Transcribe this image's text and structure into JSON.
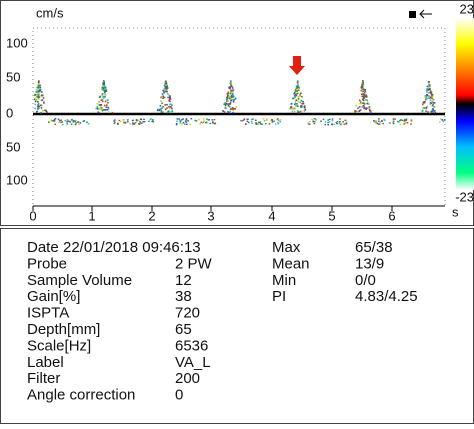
{
  "spectrum": {
    "velocity_unit": "cm/s",
    "y_labels": [
      "100",
      "50",
      "0",
      "50",
      "100"
    ],
    "x_labels": [
      "0",
      "1",
      "2",
      "3",
      "4",
      "5",
      "6"
    ],
    "time_unit": "s",
    "scale_top": "23",
    "scale_bottom": "-23"
  },
  "info": {
    "left": [
      [
        "Date",
        "22/01/2018 09:46:13"
      ],
      [
        "Probe",
        "2 PW"
      ],
      [
        "Sample Volume",
        "12"
      ],
      [
        "Gain[%]",
        "38"
      ],
      [
        "ISPTA",
        "720"
      ],
      [
        "Depth[mm]",
        "65"
      ],
      [
        "Scale[Hz]",
        "6536"
      ],
      [
        "Label",
        "VA_L"
      ],
      [
        "Filter",
        "200"
      ],
      [
        "Angle correction",
        "0"
      ]
    ],
    "right": [
      [
        "Max",
        "65/38"
      ],
      [
        "Mean",
        "13/9"
      ],
      [
        "Min",
        "0/0"
      ],
      [
        "PI",
        "4.83/4.25"
      ]
    ]
  }
}
